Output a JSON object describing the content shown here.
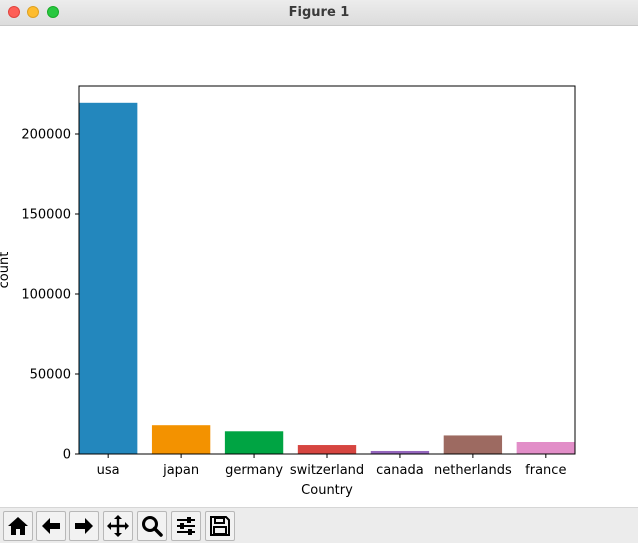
{
  "window": {
    "title": "Figure 1"
  },
  "toolbar": {
    "buttons": [
      {
        "name": "home-button",
        "icon": "home-icon"
      },
      {
        "name": "back-button",
        "icon": "arrow-left-icon"
      },
      {
        "name": "forward-button",
        "icon": "arrow-right-icon"
      },
      {
        "name": "pan-button",
        "icon": "move-icon"
      },
      {
        "name": "zoom-button",
        "icon": "magnifier-icon"
      },
      {
        "name": "configure-subplots-button",
        "icon": "sliders-icon"
      },
      {
        "name": "save-button",
        "icon": "floppy-disk-icon"
      }
    ]
  },
  "chart_data": {
    "type": "bar",
    "title": "",
    "xlabel": "Country",
    "ylabel": "count",
    "categories": [
      "usa",
      "japan",
      "germany",
      "switzerland",
      "canada",
      "netherlands",
      "france"
    ],
    "values": [
      219500,
      18000,
      14200,
      5600,
      1900,
      11600,
      7500
    ],
    "colors": [
      "#2387bd",
      "#f39200",
      "#00a443",
      "#d64540",
      "#9466bd",
      "#9d6a61",
      "#e28ec8"
    ],
    "ylim": [
      0,
      230000
    ],
    "yticks": [
      0,
      50000,
      100000,
      150000,
      200000
    ],
    "ytick_labels": [
      "0",
      "50000",
      "100000",
      "150000",
      "200000"
    ],
    "grid": false,
    "legend": "none"
  }
}
